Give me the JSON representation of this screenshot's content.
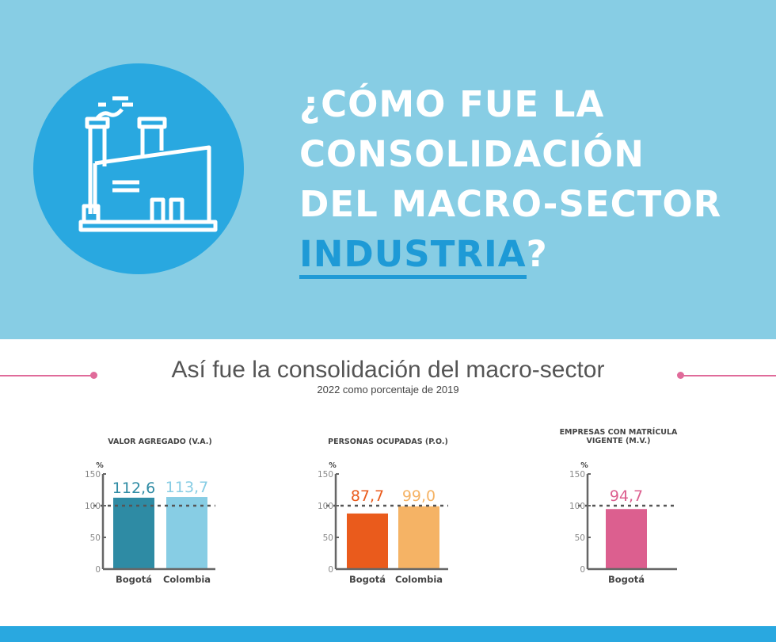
{
  "header": {
    "title_lines": [
      "¿CÓMO FUE LA",
      "CONSOLIDACIÓN",
      "DEL MACRO-SECTOR"
    ],
    "highlight": "INDUSTRIA",
    "question_end": "?",
    "icon": "factory-icon"
  },
  "section": {
    "title": "Así fue la consolidación del macro-sector",
    "subtitle": "2022 como porcentaje de 2019"
  },
  "colors": {
    "background_top": "#87cde4",
    "accent": "#29a8e0",
    "pink": "#e06b9a"
  },
  "chart_data": [
    {
      "type": "bar",
      "title": "VALOR AGREGADO (V.A.)",
      "ylabel": "%",
      "ylim": [
        0,
        150
      ],
      "yticks": [
        0,
        50,
        100,
        150
      ],
      "reference_line": 100,
      "categories": [
        "Bogotá",
        "Colombia"
      ],
      "values": [
        112.6,
        113.7
      ],
      "labels": [
        "112,6",
        "113,7"
      ],
      "colors": [
        "#2e8ba4",
        "#87cde4"
      ]
    },
    {
      "type": "bar",
      "title": "PERSONAS OCUPADAS (P.O.)",
      "ylabel": "%",
      "ylim": [
        0,
        150
      ],
      "yticks": [
        0,
        50,
        100,
        150
      ],
      "reference_line": 100,
      "categories": [
        "Bogotá",
        "Colombia"
      ],
      "values": [
        87.7,
        99.0
      ],
      "labels": [
        "87,7",
        "99,0"
      ],
      "colors": [
        "#ea5b1c",
        "#f5b365"
      ]
    },
    {
      "type": "bar",
      "title": "EMPRESAS  CON MATRÍCULA VIGENTE (M.V.)",
      "ylabel": "%",
      "ylim": [
        0,
        150
      ],
      "yticks": [
        0,
        50,
        100,
        150
      ],
      "reference_line": 100,
      "categories": [
        "Bogotá"
      ],
      "values": [
        94.7
      ],
      "labels": [
        "94,7"
      ],
      "colors": [
        "#dc5f8f"
      ]
    }
  ]
}
